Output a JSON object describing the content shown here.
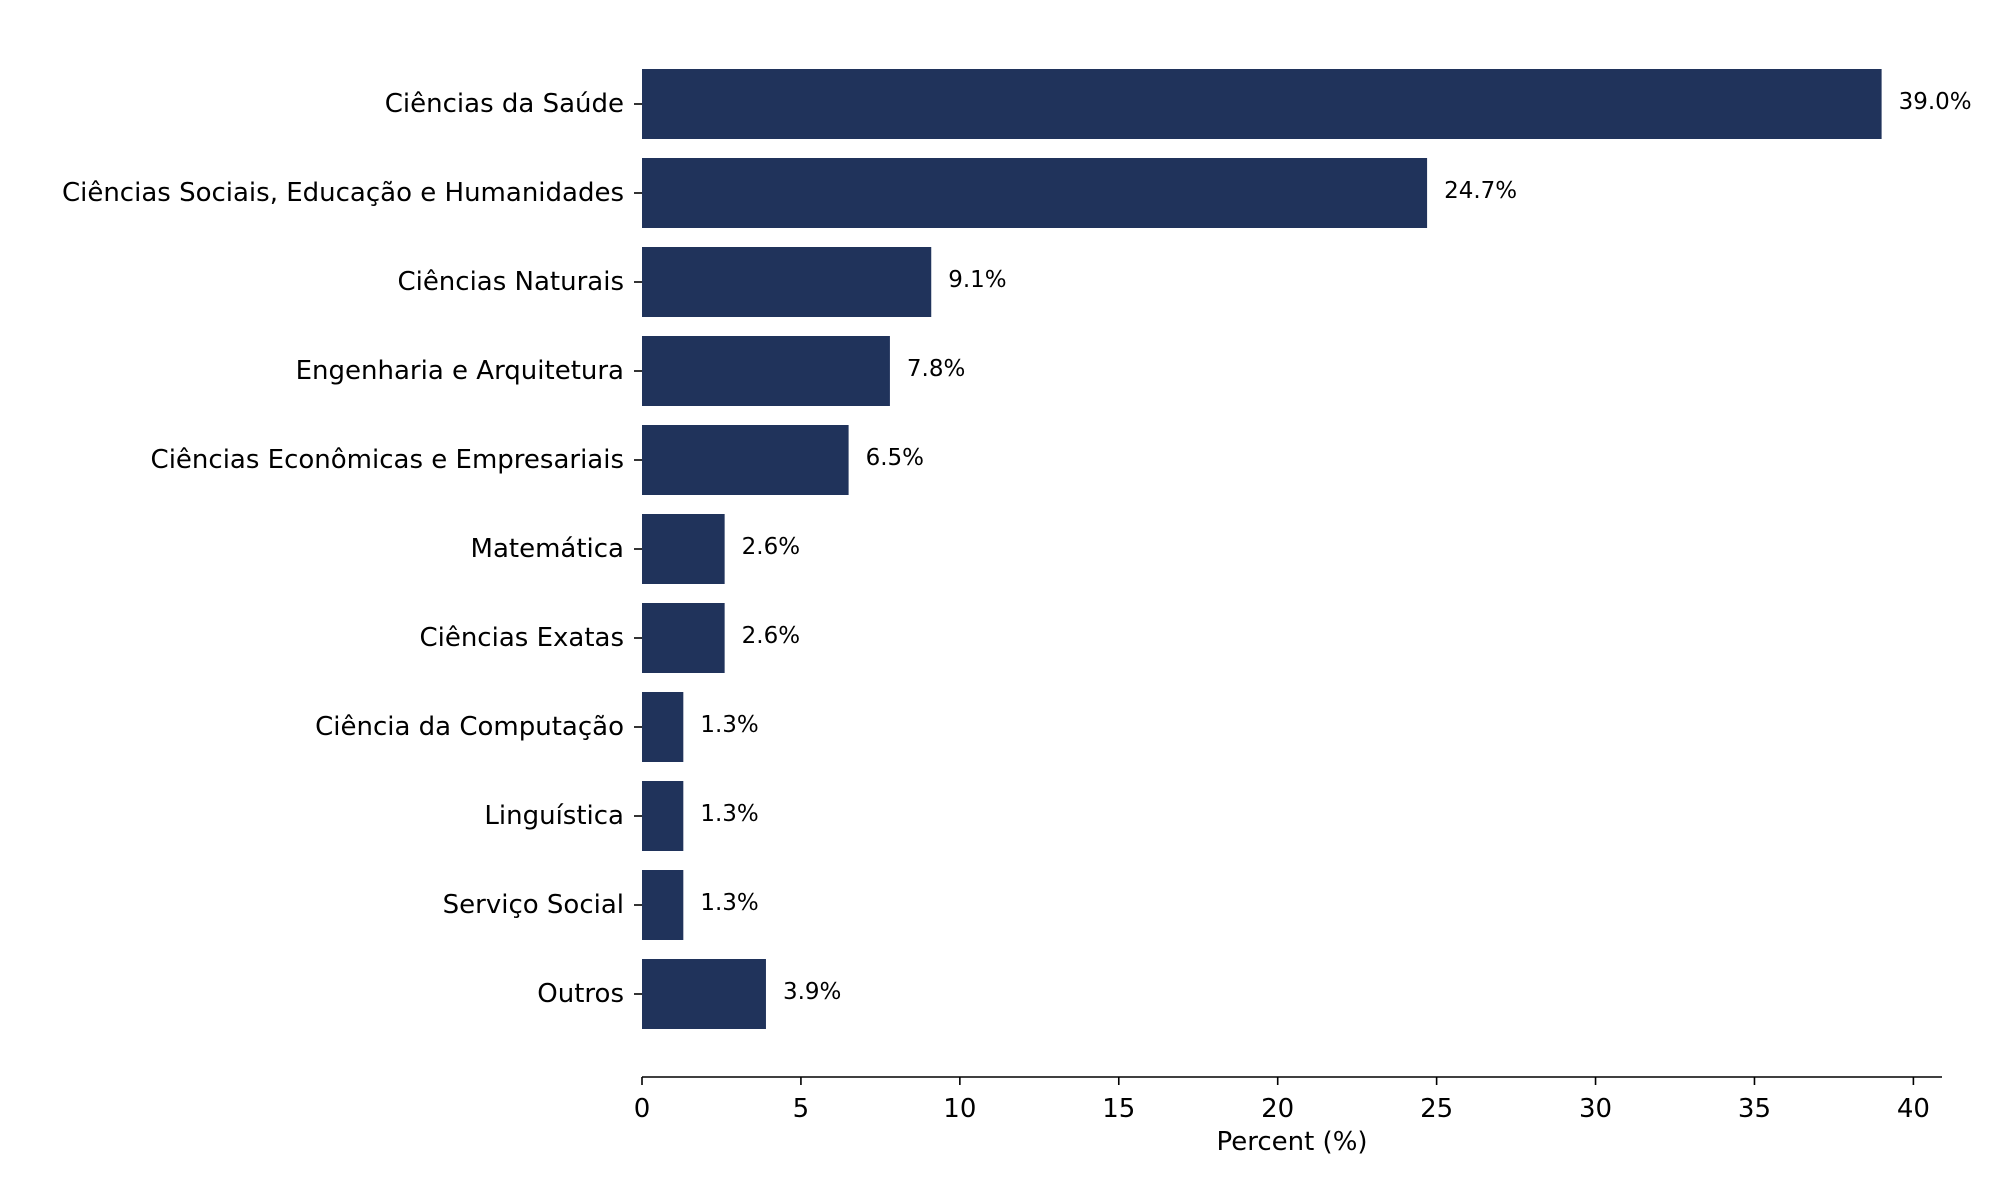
{
  "chart_data": {
    "type": "bar",
    "orientation": "horizontal",
    "categories": [
      "Ciências da Saúde",
      "Ciências Sociais, Educação e Humanidades",
      "Ciências Naturais",
      "Engenharia e Arquitetura",
      "Ciências Econômicas e Empresariais",
      "Matemática",
      "Ciências Exatas",
      "Ciência da Computação",
      "Linguística",
      "Serviço Social",
      "Outros"
    ],
    "values": [
      39.0,
      24.7,
      9.1,
      7.8,
      6.5,
      2.6,
      2.6,
      1.3,
      1.3,
      1.3,
      3.9
    ],
    "value_labels": [
      "39.0%",
      "24.7%",
      "9.1%",
      "7.8%",
      "6.5%",
      "2.6%",
      "2.6%",
      "1.3%",
      "1.3%",
      "1.3%",
      "3.9%"
    ],
    "xlabel": "Percent (%)",
    "ylabel": "",
    "xlim": [
      0,
      40.9
    ],
    "xticks": [
      0,
      5,
      10,
      15,
      20,
      25,
      30,
      35,
      40
    ],
    "xtick_labels": [
      "0",
      "5",
      "10",
      "15",
      "20",
      "25",
      "30",
      "35",
      "40"
    ],
    "grid": false,
    "legend": "none",
    "bar_color": "#20335b"
  }
}
